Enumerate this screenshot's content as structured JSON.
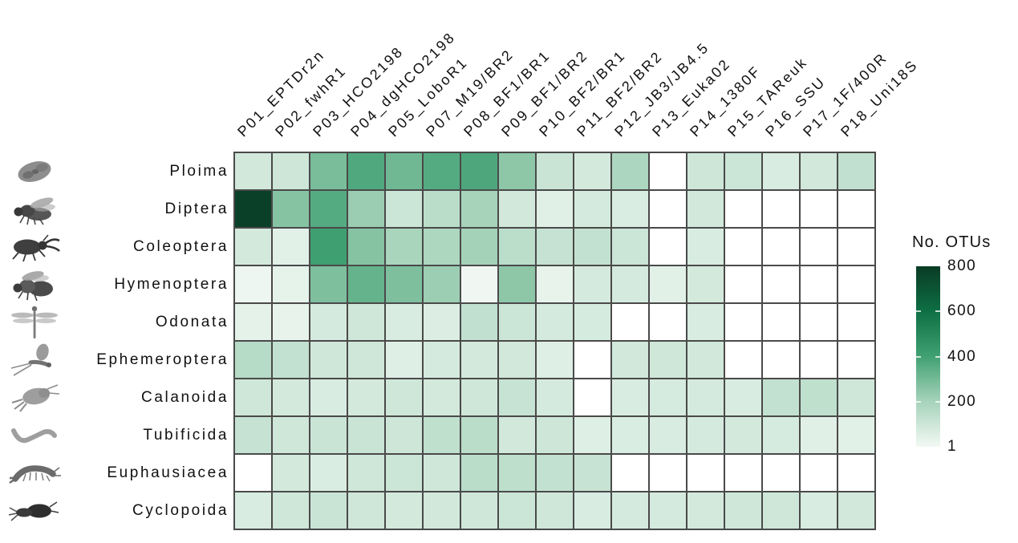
{
  "chart_data": {
    "type": "heatmap",
    "legend_title": "No. OTUs",
    "x_categories": [
      "P01_EPTDr2n",
      "P02_fwhR1",
      "P03_HCO2198",
      "P04_dgHCO2198",
      "P05_LoboR1",
      "P07_M19/BR2",
      "P08_BF1/BR1",
      "P09_BF1/BR2",
      "P10_BF2/BR1",
      "P11_BF2/BR2",
      "P12_JB3/JB4.5",
      "P13_Euka02",
      "P14_1380F",
      "P15_TAReuk",
      "P16_SSU",
      "P17_1F/400R",
      "P18_Uni18S"
    ],
    "y_categories": [
      "Ploima",
      "Diptera",
      "Coleoptera",
      "Hymenoptera",
      "Odonata",
      "Ephemeroptera",
      "Calanoida",
      "Tubificida",
      "Euphausiacea",
      "Cyclopoida"
    ],
    "row_icons": [
      "rotifer",
      "fly",
      "stag-beetle",
      "bee",
      "dragonfly",
      "mayfly",
      "calanoid-copepod",
      "tubificid-worm",
      "krill",
      "cyclopoid-copepod"
    ],
    "values": [
      [
        90,
        100,
        290,
        370,
        310,
        360,
        375,
        250,
        110,
        85,
        185,
        null,
        100,
        105,
        70,
        90,
        130
      ],
      [
        780,
        265,
        360,
        225,
        105,
        150,
        200,
        90,
        50,
        80,
        65,
        null,
        90,
        null,
        null,
        null,
        null
      ],
      [
        85,
        45,
        410,
        265,
        190,
        180,
        205,
        145,
        120,
        125,
        105,
        null,
        70,
        null,
        null,
        null,
        null
      ],
      [
        15,
        35,
        280,
        330,
        280,
        220,
        10,
        250,
        30,
        80,
        80,
        45,
        85,
        null,
        null,
        null,
        null
      ],
      [
        40,
        30,
        80,
        95,
        70,
        60,
        130,
        105,
        80,
        75,
        null,
        null,
        70,
        null,
        null,
        null,
        null
      ],
      [
        160,
        125,
        95,
        95,
        55,
        80,
        85,
        90,
        55,
        null,
        90,
        95,
        90,
        null,
        null,
        null,
        null
      ],
      [
        95,
        85,
        70,
        85,
        95,
        85,
        95,
        115,
        80,
        null,
        70,
        75,
        80,
        70,
        125,
        135,
        95
      ],
      [
        120,
        95,
        110,
        110,
        100,
        135,
        150,
        90,
        100,
        55,
        65,
        70,
        80,
        85,
        75,
        50,
        45
      ],
      [
        null,
        85,
        65,
        95,
        105,
        95,
        150,
        140,
        125,
        115,
        null,
        null,
        null,
        null,
        null,
        null,
        null
      ],
      [
        70,
        95,
        110,
        95,
        85,
        90,
        95,
        105,
        95,
        70,
        80,
        80,
        85,
        95,
        95,
        70,
        90
      ]
    ],
    "value_scale": {
      "min": 1,
      "max": 800,
      "legend_ticks": [
        800,
        600,
        400,
        200,
        1
      ]
    },
    "colormap": {
      "na_color": "#ffffff",
      "stops": [
        [
          0,
          "#f3f9f5"
        ],
        [
          0.25,
          "#a6d3ba"
        ],
        [
          0.5,
          "#41a173"
        ],
        [
          0.75,
          "#0e6f44"
        ],
        [
          1,
          "#0a3b24"
        ]
      ]
    },
    "grid_line_color": "#4a4a4a",
    "text_color": "#111111"
  }
}
